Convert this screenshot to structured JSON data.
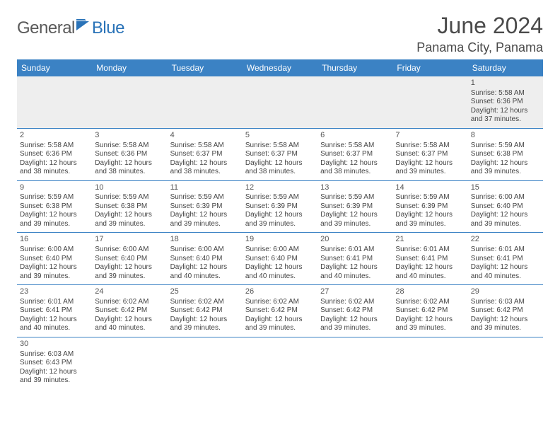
{
  "logo": {
    "text1": "General",
    "text2": "Blue"
  },
  "title": "June 2024",
  "location": "Panama City, Panama",
  "header_color": "#3b82c4",
  "weekdays": [
    "Sunday",
    "Monday",
    "Tuesday",
    "Wednesday",
    "Thursday",
    "Friday",
    "Saturday"
  ],
  "weeks": [
    [
      null,
      null,
      null,
      null,
      null,
      null,
      {
        "n": "1",
        "sr": "Sunrise: 5:58 AM",
        "ss": "Sunset: 6:36 PM",
        "d1": "Daylight: 12 hours",
        "d2": "and 37 minutes."
      }
    ],
    [
      {
        "n": "2",
        "sr": "Sunrise: 5:58 AM",
        "ss": "Sunset: 6:36 PM",
        "d1": "Daylight: 12 hours",
        "d2": "and 38 minutes."
      },
      {
        "n": "3",
        "sr": "Sunrise: 5:58 AM",
        "ss": "Sunset: 6:36 PM",
        "d1": "Daylight: 12 hours",
        "d2": "and 38 minutes."
      },
      {
        "n": "4",
        "sr": "Sunrise: 5:58 AM",
        "ss": "Sunset: 6:37 PM",
        "d1": "Daylight: 12 hours",
        "d2": "and 38 minutes."
      },
      {
        "n": "5",
        "sr": "Sunrise: 5:58 AM",
        "ss": "Sunset: 6:37 PM",
        "d1": "Daylight: 12 hours",
        "d2": "and 38 minutes."
      },
      {
        "n": "6",
        "sr": "Sunrise: 5:58 AM",
        "ss": "Sunset: 6:37 PM",
        "d1": "Daylight: 12 hours",
        "d2": "and 38 minutes."
      },
      {
        "n": "7",
        "sr": "Sunrise: 5:58 AM",
        "ss": "Sunset: 6:37 PM",
        "d1": "Daylight: 12 hours",
        "d2": "and 39 minutes."
      },
      {
        "n": "8",
        "sr": "Sunrise: 5:59 AM",
        "ss": "Sunset: 6:38 PM",
        "d1": "Daylight: 12 hours",
        "d2": "and 39 minutes."
      }
    ],
    [
      {
        "n": "9",
        "sr": "Sunrise: 5:59 AM",
        "ss": "Sunset: 6:38 PM",
        "d1": "Daylight: 12 hours",
        "d2": "and 39 minutes."
      },
      {
        "n": "10",
        "sr": "Sunrise: 5:59 AM",
        "ss": "Sunset: 6:38 PM",
        "d1": "Daylight: 12 hours",
        "d2": "and 39 minutes."
      },
      {
        "n": "11",
        "sr": "Sunrise: 5:59 AM",
        "ss": "Sunset: 6:39 PM",
        "d1": "Daylight: 12 hours",
        "d2": "and 39 minutes."
      },
      {
        "n": "12",
        "sr": "Sunrise: 5:59 AM",
        "ss": "Sunset: 6:39 PM",
        "d1": "Daylight: 12 hours",
        "d2": "and 39 minutes."
      },
      {
        "n": "13",
        "sr": "Sunrise: 5:59 AM",
        "ss": "Sunset: 6:39 PM",
        "d1": "Daylight: 12 hours",
        "d2": "and 39 minutes."
      },
      {
        "n": "14",
        "sr": "Sunrise: 5:59 AM",
        "ss": "Sunset: 6:39 PM",
        "d1": "Daylight: 12 hours",
        "d2": "and 39 minutes."
      },
      {
        "n": "15",
        "sr": "Sunrise: 6:00 AM",
        "ss": "Sunset: 6:40 PM",
        "d1": "Daylight: 12 hours",
        "d2": "and 39 minutes."
      }
    ],
    [
      {
        "n": "16",
        "sr": "Sunrise: 6:00 AM",
        "ss": "Sunset: 6:40 PM",
        "d1": "Daylight: 12 hours",
        "d2": "and 39 minutes."
      },
      {
        "n": "17",
        "sr": "Sunrise: 6:00 AM",
        "ss": "Sunset: 6:40 PM",
        "d1": "Daylight: 12 hours",
        "d2": "and 39 minutes."
      },
      {
        "n": "18",
        "sr": "Sunrise: 6:00 AM",
        "ss": "Sunset: 6:40 PM",
        "d1": "Daylight: 12 hours",
        "d2": "and 40 minutes."
      },
      {
        "n": "19",
        "sr": "Sunrise: 6:00 AM",
        "ss": "Sunset: 6:40 PM",
        "d1": "Daylight: 12 hours",
        "d2": "and 40 minutes."
      },
      {
        "n": "20",
        "sr": "Sunrise: 6:01 AM",
        "ss": "Sunset: 6:41 PM",
        "d1": "Daylight: 12 hours",
        "d2": "and 40 minutes."
      },
      {
        "n": "21",
        "sr": "Sunrise: 6:01 AM",
        "ss": "Sunset: 6:41 PM",
        "d1": "Daylight: 12 hours",
        "d2": "and 40 minutes."
      },
      {
        "n": "22",
        "sr": "Sunrise: 6:01 AM",
        "ss": "Sunset: 6:41 PM",
        "d1": "Daylight: 12 hours",
        "d2": "and 40 minutes."
      }
    ],
    [
      {
        "n": "23",
        "sr": "Sunrise: 6:01 AM",
        "ss": "Sunset: 6:41 PM",
        "d1": "Daylight: 12 hours",
        "d2": "and 40 minutes."
      },
      {
        "n": "24",
        "sr": "Sunrise: 6:02 AM",
        "ss": "Sunset: 6:42 PM",
        "d1": "Daylight: 12 hours",
        "d2": "and 40 minutes."
      },
      {
        "n": "25",
        "sr": "Sunrise: 6:02 AM",
        "ss": "Sunset: 6:42 PM",
        "d1": "Daylight: 12 hours",
        "d2": "and 39 minutes."
      },
      {
        "n": "26",
        "sr": "Sunrise: 6:02 AM",
        "ss": "Sunset: 6:42 PM",
        "d1": "Daylight: 12 hours",
        "d2": "and 39 minutes."
      },
      {
        "n": "27",
        "sr": "Sunrise: 6:02 AM",
        "ss": "Sunset: 6:42 PM",
        "d1": "Daylight: 12 hours",
        "d2": "and 39 minutes."
      },
      {
        "n": "28",
        "sr": "Sunrise: 6:02 AM",
        "ss": "Sunset: 6:42 PM",
        "d1": "Daylight: 12 hours",
        "d2": "and 39 minutes."
      },
      {
        "n": "29",
        "sr": "Sunrise: 6:03 AM",
        "ss": "Sunset: 6:42 PM",
        "d1": "Daylight: 12 hours",
        "d2": "and 39 minutes."
      }
    ],
    [
      {
        "n": "30",
        "sr": "Sunrise: 6:03 AM",
        "ss": "Sunset: 6:43 PM",
        "d1": "Daylight: 12 hours",
        "d2": "and 39 minutes."
      },
      null,
      null,
      null,
      null,
      null,
      null
    ]
  ]
}
